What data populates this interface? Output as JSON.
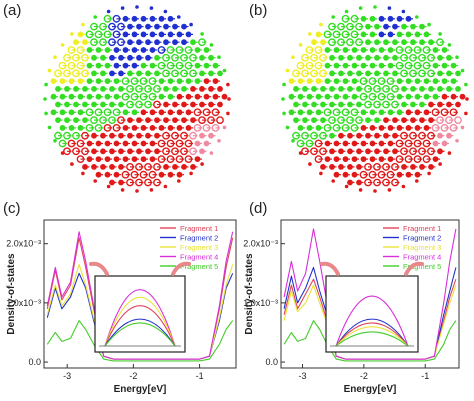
{
  "panels": {
    "a": "(a)",
    "b": "(b)",
    "c": "(c)",
    "d": "(d)"
  },
  "colors": {
    "fragment1": "#e0445a",
    "fragment2": "#2233cc",
    "fragment3": "#e8e23a",
    "fragment4": "#d82fd8",
    "fragment5": "#44cc2a",
    "mol_blue": "#1f2fd0",
    "mol_green": "#33dd22",
    "mol_red": "#e01818",
    "mol_yellow": "#eeee22",
    "mol_pink": "#f08aa0"
  },
  "chart_data": [
    {
      "panel": "c",
      "type": "line",
      "xlabel": "Energy[eV]",
      "ylabel": "Density-of-states",
      "xlim": [
        -3.35,
        -0.45
      ],
      "ylim": [
        -0.0001,
        0.0024
      ],
      "xticks": [
        -3,
        -2,
        -1
      ],
      "xtick_labels": [
        "-3",
        "-2",
        "-1"
      ],
      "yticks": [
        0,
        0.001,
        0.002
      ],
      "ytick_labels": [
        "0.0",
        "1.0x10⁻³",
        "2.0x10⁻³"
      ],
      "legend_position": "top-right",
      "series": [
        {
          "name": "Fragment 1",
          "color": "#e0445a",
          "points": [
            [
              -3.3,
              0.0009
            ],
            [
              -3.18,
              0.00155
            ],
            [
              -3.08,
              0.00105
            ],
            [
              -2.95,
              0.0013
            ],
            [
              -2.82,
              0.0021
            ],
            [
              -2.72,
              0.0016
            ],
            [
              -2.6,
              0.0009
            ],
            [
              -2.45,
              0.0001
            ],
            [
              -2.3,
              5e-05
            ],
            [
              -1.0,
              5e-05
            ],
            [
              -0.85,
              0.0001
            ],
            [
              -0.7,
              0.0009
            ],
            [
              -0.6,
              0.0016
            ],
            [
              -0.5,
              0.0021
            ]
          ]
        },
        {
          "name": "Fragment 2",
          "color": "#2233cc",
          "points": [
            [
              -3.3,
              0.00075
            ],
            [
              -3.18,
              0.00125
            ],
            [
              -3.08,
              0.0009
            ],
            [
              -2.95,
              0.0011
            ],
            [
              -2.82,
              0.0015
            ],
            [
              -2.72,
              0.00125
            ],
            [
              -2.6,
              0.0007
            ],
            [
              -2.45,
              0.0001
            ],
            [
              -2.3,
              5e-05
            ],
            [
              -1.0,
              5e-05
            ],
            [
              -0.85,
              0.0001
            ],
            [
              -0.7,
              0.0007
            ],
            [
              -0.6,
              0.00125
            ],
            [
              -0.5,
              0.0015
            ]
          ]
        },
        {
          "name": "Fragment 3",
          "color": "#e8e23a",
          "points": [
            [
              -3.3,
              0.0008
            ],
            [
              -3.18,
              0.0013
            ],
            [
              -3.08,
              0.00095
            ],
            [
              -2.95,
              0.00115
            ],
            [
              -2.82,
              0.00165
            ],
            [
              -2.72,
              0.0013
            ],
            [
              -2.6,
              0.00075
            ],
            [
              -2.45,
              0.0001
            ],
            [
              -2.3,
              5e-05
            ],
            [
              -1.0,
              5e-05
            ],
            [
              -0.85,
              0.0001
            ],
            [
              -0.7,
              0.00075
            ],
            [
              -0.6,
              0.0013
            ],
            [
              -0.5,
              0.00165
            ]
          ]
        },
        {
          "name": "Fragment 4",
          "color": "#d82fd8",
          "points": [
            [
              -3.3,
              0.00095
            ],
            [
              -3.18,
              0.0016
            ],
            [
              -3.08,
              0.0011
            ],
            [
              -2.95,
              0.00135
            ],
            [
              -2.82,
              0.0022
            ],
            [
              -2.72,
              0.0017
            ],
            [
              -2.6,
              0.00095
            ],
            [
              -2.45,
              0.0001
            ],
            [
              -2.3,
              5e-05
            ],
            [
              -1.0,
              5e-05
            ],
            [
              -0.85,
              0.0001
            ],
            [
              -0.7,
              0.00095
            ],
            [
              -0.6,
              0.0017
            ],
            [
              -0.5,
              0.0022
            ]
          ]
        },
        {
          "name": "Fragment 5",
          "color": "#44cc2a",
          "points": [
            [
              -3.3,
              0.0003
            ],
            [
              -3.18,
              0.0005
            ],
            [
              -3.08,
              0.00035
            ],
            [
              -2.95,
              0.0004
            ],
            [
              -2.82,
              0.0007
            ],
            [
              -2.72,
              0.00055
            ],
            [
              -2.6,
              0.0003
            ],
            [
              -2.45,
              5e-05
            ],
            [
              -2.3,
              2e-05
            ],
            [
              -1.0,
              2e-05
            ],
            [
              -0.85,
              5e-05
            ],
            [
              -0.7,
              0.0003
            ],
            [
              -0.6,
              0.00055
            ],
            [
              -0.5,
              0.0007
            ]
          ]
        }
      ],
      "inset_peaks": [
        {
          "color": "#d82fd8",
          "height": 0.88
        },
        {
          "color": "#e8e23a",
          "height": 0.76
        },
        {
          "color": "#e0445a",
          "height": 0.63
        },
        {
          "color": "#2233cc",
          "height": 0.42
        },
        {
          "color": "#44cc2a",
          "height": 0.36
        }
      ]
    },
    {
      "panel": "d",
      "type": "line",
      "xlabel": "Energy[eV]",
      "ylabel": "Density-of-states",
      "xlim": [
        -3.35,
        -0.45
      ],
      "ylim": [
        -0.0001,
        0.0024
      ],
      "xticks": [
        -3,
        -2,
        -1
      ],
      "xtick_labels": [
        "-3",
        "-2",
        "-1"
      ],
      "yticks": [
        0,
        0.001,
        0.002
      ],
      "ytick_labels": [
        "0.0",
        "1.0x10⁻³",
        "2.0x10⁻³"
      ],
      "legend_position": "top-right",
      "series": [
        {
          "name": "Fragment 1",
          "color": "#e0445a",
          "points": [
            [
              -3.3,
              0.0008
            ],
            [
              -3.18,
              0.0013
            ],
            [
              -3.08,
              0.0009
            ],
            [
              -2.95,
              0.00115
            ],
            [
              -2.82,
              0.0014
            ],
            [
              -2.72,
              0.0011
            ],
            [
              -2.6,
              0.0007
            ],
            [
              -2.45,
              0.0001
            ],
            [
              -2.3,
              5e-05
            ],
            [
              -1.0,
              5e-05
            ],
            [
              -0.85,
              0.0001
            ],
            [
              -0.7,
              0.0007
            ],
            [
              -0.6,
              0.0011
            ],
            [
              -0.5,
              0.0014
            ]
          ]
        },
        {
          "name": "Fragment 2",
          "color": "#2233cc",
          "points": [
            [
              -3.3,
              0.0009
            ],
            [
              -3.18,
              0.00145
            ],
            [
              -3.08,
              0.001
            ],
            [
              -2.95,
              0.00125
            ],
            [
              -2.82,
              0.0016
            ],
            [
              -2.72,
              0.0012
            ],
            [
              -2.6,
              0.0008
            ],
            [
              -2.45,
              0.0001
            ],
            [
              -2.3,
              5e-05
            ],
            [
              -1.0,
              5e-05
            ],
            [
              -0.85,
              0.0001
            ],
            [
              -0.7,
              0.0008
            ],
            [
              -0.6,
              0.0012
            ],
            [
              -0.5,
              0.0016
            ]
          ]
        },
        {
          "name": "Fragment 3",
          "color": "#e8e23a",
          "points": [
            [
              -3.3,
              0.0007
            ],
            [
              -3.18,
              0.0012
            ],
            [
              -3.08,
              0.00085
            ],
            [
              -2.95,
              0.001
            ],
            [
              -2.82,
              0.0013
            ],
            [
              -2.72,
              0.001
            ],
            [
              -2.6,
              0.00065
            ],
            [
              -2.45,
              0.0001
            ],
            [
              -2.3,
              5e-05
            ],
            [
              -1.0,
              5e-05
            ],
            [
              -0.85,
              0.0001
            ],
            [
              -0.7,
              0.00065
            ],
            [
              -0.6,
              0.001
            ],
            [
              -0.5,
              0.0013
            ]
          ]
        },
        {
          "name": "Fragment 4",
          "color": "#d82fd8",
          "points": [
            [
              -3.3,
              0.0011
            ],
            [
              -3.18,
              0.0017
            ],
            [
              -3.08,
              0.0012
            ],
            [
              -2.95,
              0.0015
            ],
            [
              -2.82,
              0.00225
            ],
            [
              -2.72,
              0.0017
            ],
            [
              -2.6,
              0.001
            ],
            [
              -2.45,
              0.0001
            ],
            [
              -2.3,
              5e-05
            ],
            [
              -1.0,
              5e-05
            ],
            [
              -0.85,
              0.0001
            ],
            [
              -0.7,
              0.001
            ],
            [
              -0.6,
              0.0017
            ],
            [
              -0.5,
              0.00225
            ]
          ]
        },
        {
          "name": "Fragment 5",
          "color": "#44cc2a",
          "points": [
            [
              -3.3,
              0.0003
            ],
            [
              -3.18,
              0.0005
            ],
            [
              -3.08,
              0.00035
            ],
            [
              -2.95,
              0.0004
            ],
            [
              -2.82,
              0.0007
            ],
            [
              -2.72,
              0.00055
            ],
            [
              -2.6,
              0.0003
            ],
            [
              -2.45,
              5e-05
            ],
            [
              -2.3,
              2e-05
            ],
            [
              -1.0,
              2e-05
            ],
            [
              -0.85,
              5e-05
            ],
            [
              -0.7,
              0.0003
            ],
            [
              -0.6,
              0.00055
            ],
            [
              -0.5,
              0.0007
            ]
          ]
        }
      ],
      "inset_peaks": [
        {
          "color": "#d82fd8",
          "height": 0.78
        },
        {
          "color": "#2233cc",
          "height": 0.42
        },
        {
          "color": "#e0445a",
          "height": 0.36
        },
        {
          "color": "#e8e23a",
          "height": 0.3
        },
        {
          "color": "#44cc2a",
          "height": 0.22
        }
      ]
    }
  ]
}
